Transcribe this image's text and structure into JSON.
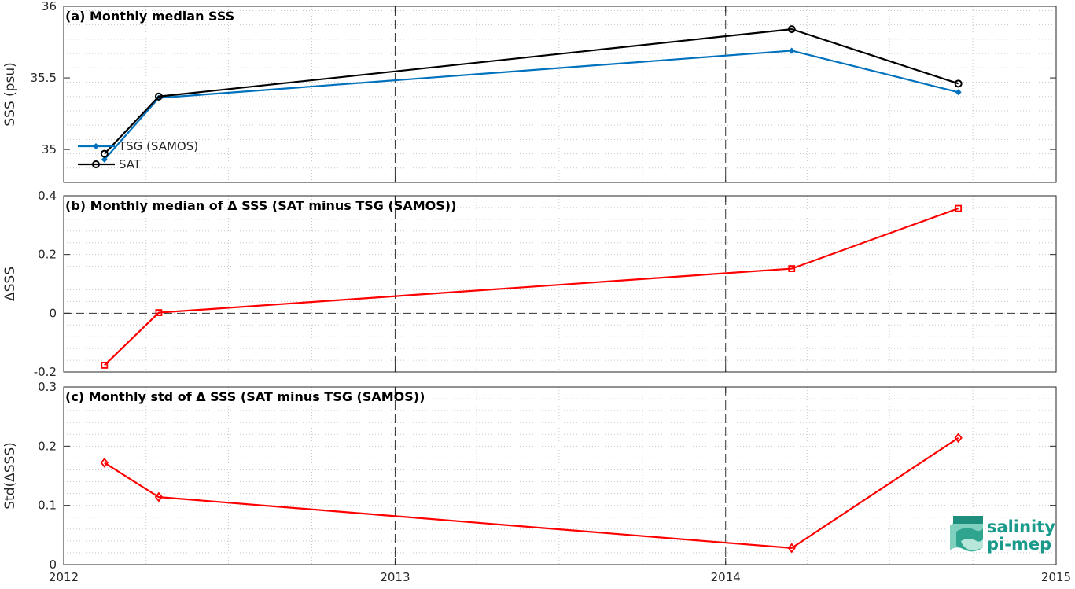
{
  "chart_data": [
    {
      "type": "line",
      "title": "(a) Monthly median SSS",
      "ylabel": "SSS (psu)",
      "ylim": [
        34.77,
        36
      ],
      "yticks": [
        "35",
        "35.5",
        "36"
      ],
      "ytick_values": [
        35,
        35.5,
        36
      ],
      "grid": true,
      "legend_position": "bottom-left",
      "series": [
        {
          "name": "TSG (SAMOS)",
          "color": "#0072bd",
          "marker": "filled-diamond",
          "x": [
            "2012-02",
            "2012-04",
            "2014-03",
            "2014-09"
          ],
          "values": [
            34.93,
            35.36,
            35.69,
            35.4
          ]
        },
        {
          "name": "SAT",
          "color": "#000000",
          "marker": "open-circle",
          "x": [
            "2012-02",
            "2012-04",
            "2014-03",
            "2014-09"
          ],
          "values": [
            34.97,
            35.37,
            35.84,
            35.46
          ]
        }
      ]
    },
    {
      "type": "line",
      "title": "(b) Monthly median of Δ SSS (SAT minus TSG (SAMOS))",
      "ylabel": "ΔSSS",
      "ylim": [
        -0.2,
        0.4
      ],
      "yticks": [
        "-0.2",
        "0",
        "0.2",
        "0.4"
      ],
      "ytick_values": [
        -0.2,
        0,
        0.2,
        0.4
      ],
      "grid": true,
      "zero_line": true,
      "series": [
        {
          "color": "#ff0000",
          "marker": "open-square",
          "x": [
            "2012-02",
            "2012-04",
            "2014-03",
            "2014-09"
          ],
          "values": [
            -0.177,
            0.002,
            0.152,
            0.357
          ]
        }
      ]
    },
    {
      "type": "line",
      "title": "(c) Monthly std of Δ SSS (SAT minus TSG (SAMOS))",
      "ylabel": "Std(ΔSSS)",
      "ylim": [
        0,
        0.3
      ],
      "yticks": [
        "0",
        "0.1",
        "0.2",
        "0.3"
      ],
      "ytick_values": [
        0,
        0.1,
        0.2,
        0.3
      ],
      "grid": true,
      "series": [
        {
          "color": "#ff0000",
          "marker": "open-diamond",
          "x": [
            "2012-02",
            "2012-04",
            "2014-03",
            "2014-09"
          ],
          "values": [
            0.172,
            0.114,
            0.028,
            0.214
          ]
        }
      ]
    }
  ],
  "xaxis": {
    "range": [
      "2012-01-01",
      "2015-01-01"
    ],
    "ticks": [
      "2012",
      "2013",
      "2014",
      "2015"
    ],
    "tick_dates": [
      "2012-01-01",
      "2013-01-01",
      "2014-01-01",
      "2015-01-01"
    ],
    "year_lines": [
      "2013-01-01",
      "2014-01-01"
    ]
  },
  "logo": {
    "line1": "salinity",
    "line2": "pi-mep"
  }
}
